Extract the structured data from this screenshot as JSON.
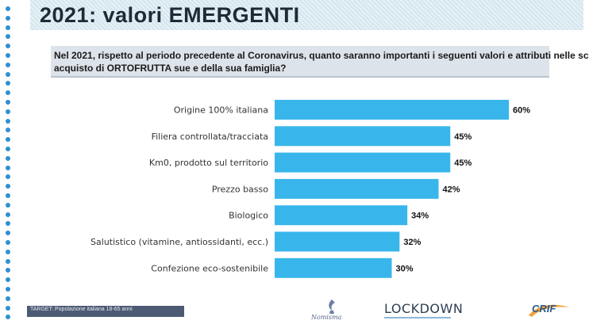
{
  "header": {
    "title": "2021: valori EMERGENTI"
  },
  "question": {
    "line1": "Nel 2021, rispetto al periodo precedente al Coronavirus, quanto saranno importanti i seguenti valori e attributi nelle sc",
    "line2": "acquisto di ORTOFRUTTA sue e della sua famiglia?"
  },
  "chart_data": {
    "type": "bar",
    "orientation": "horizontal",
    "categories": [
      "Origine 100% italiana",
      "Filiera controllata/tracciata",
      "Km0, prodotto sul territorio",
      "Prezzo basso",
      "Biologico",
      "Salutistico (vitamine, antiossidanti, ecc.)",
      "Confezione eco-sostenibile"
    ],
    "values": [
      60,
      45,
      45,
      42,
      34,
      32,
      30
    ],
    "value_labels": [
      "60%",
      "45%",
      "45%",
      "42%",
      "34%",
      "32%",
      "30%"
    ],
    "xlim": [
      0,
      60
    ],
    "bar_color": "#38b6ec",
    "grid": false,
    "legend": "none"
  },
  "footer": {
    "target": "TARGET: Popolazione italiana 18-65 anni",
    "logo_nomisma": "Nomisma",
    "logo_lockdown": "LOCKDOWN",
    "logo_crif": "CRIF"
  },
  "colors": {
    "dots": "#2f8fd0",
    "title": "#1f2a36"
  }
}
